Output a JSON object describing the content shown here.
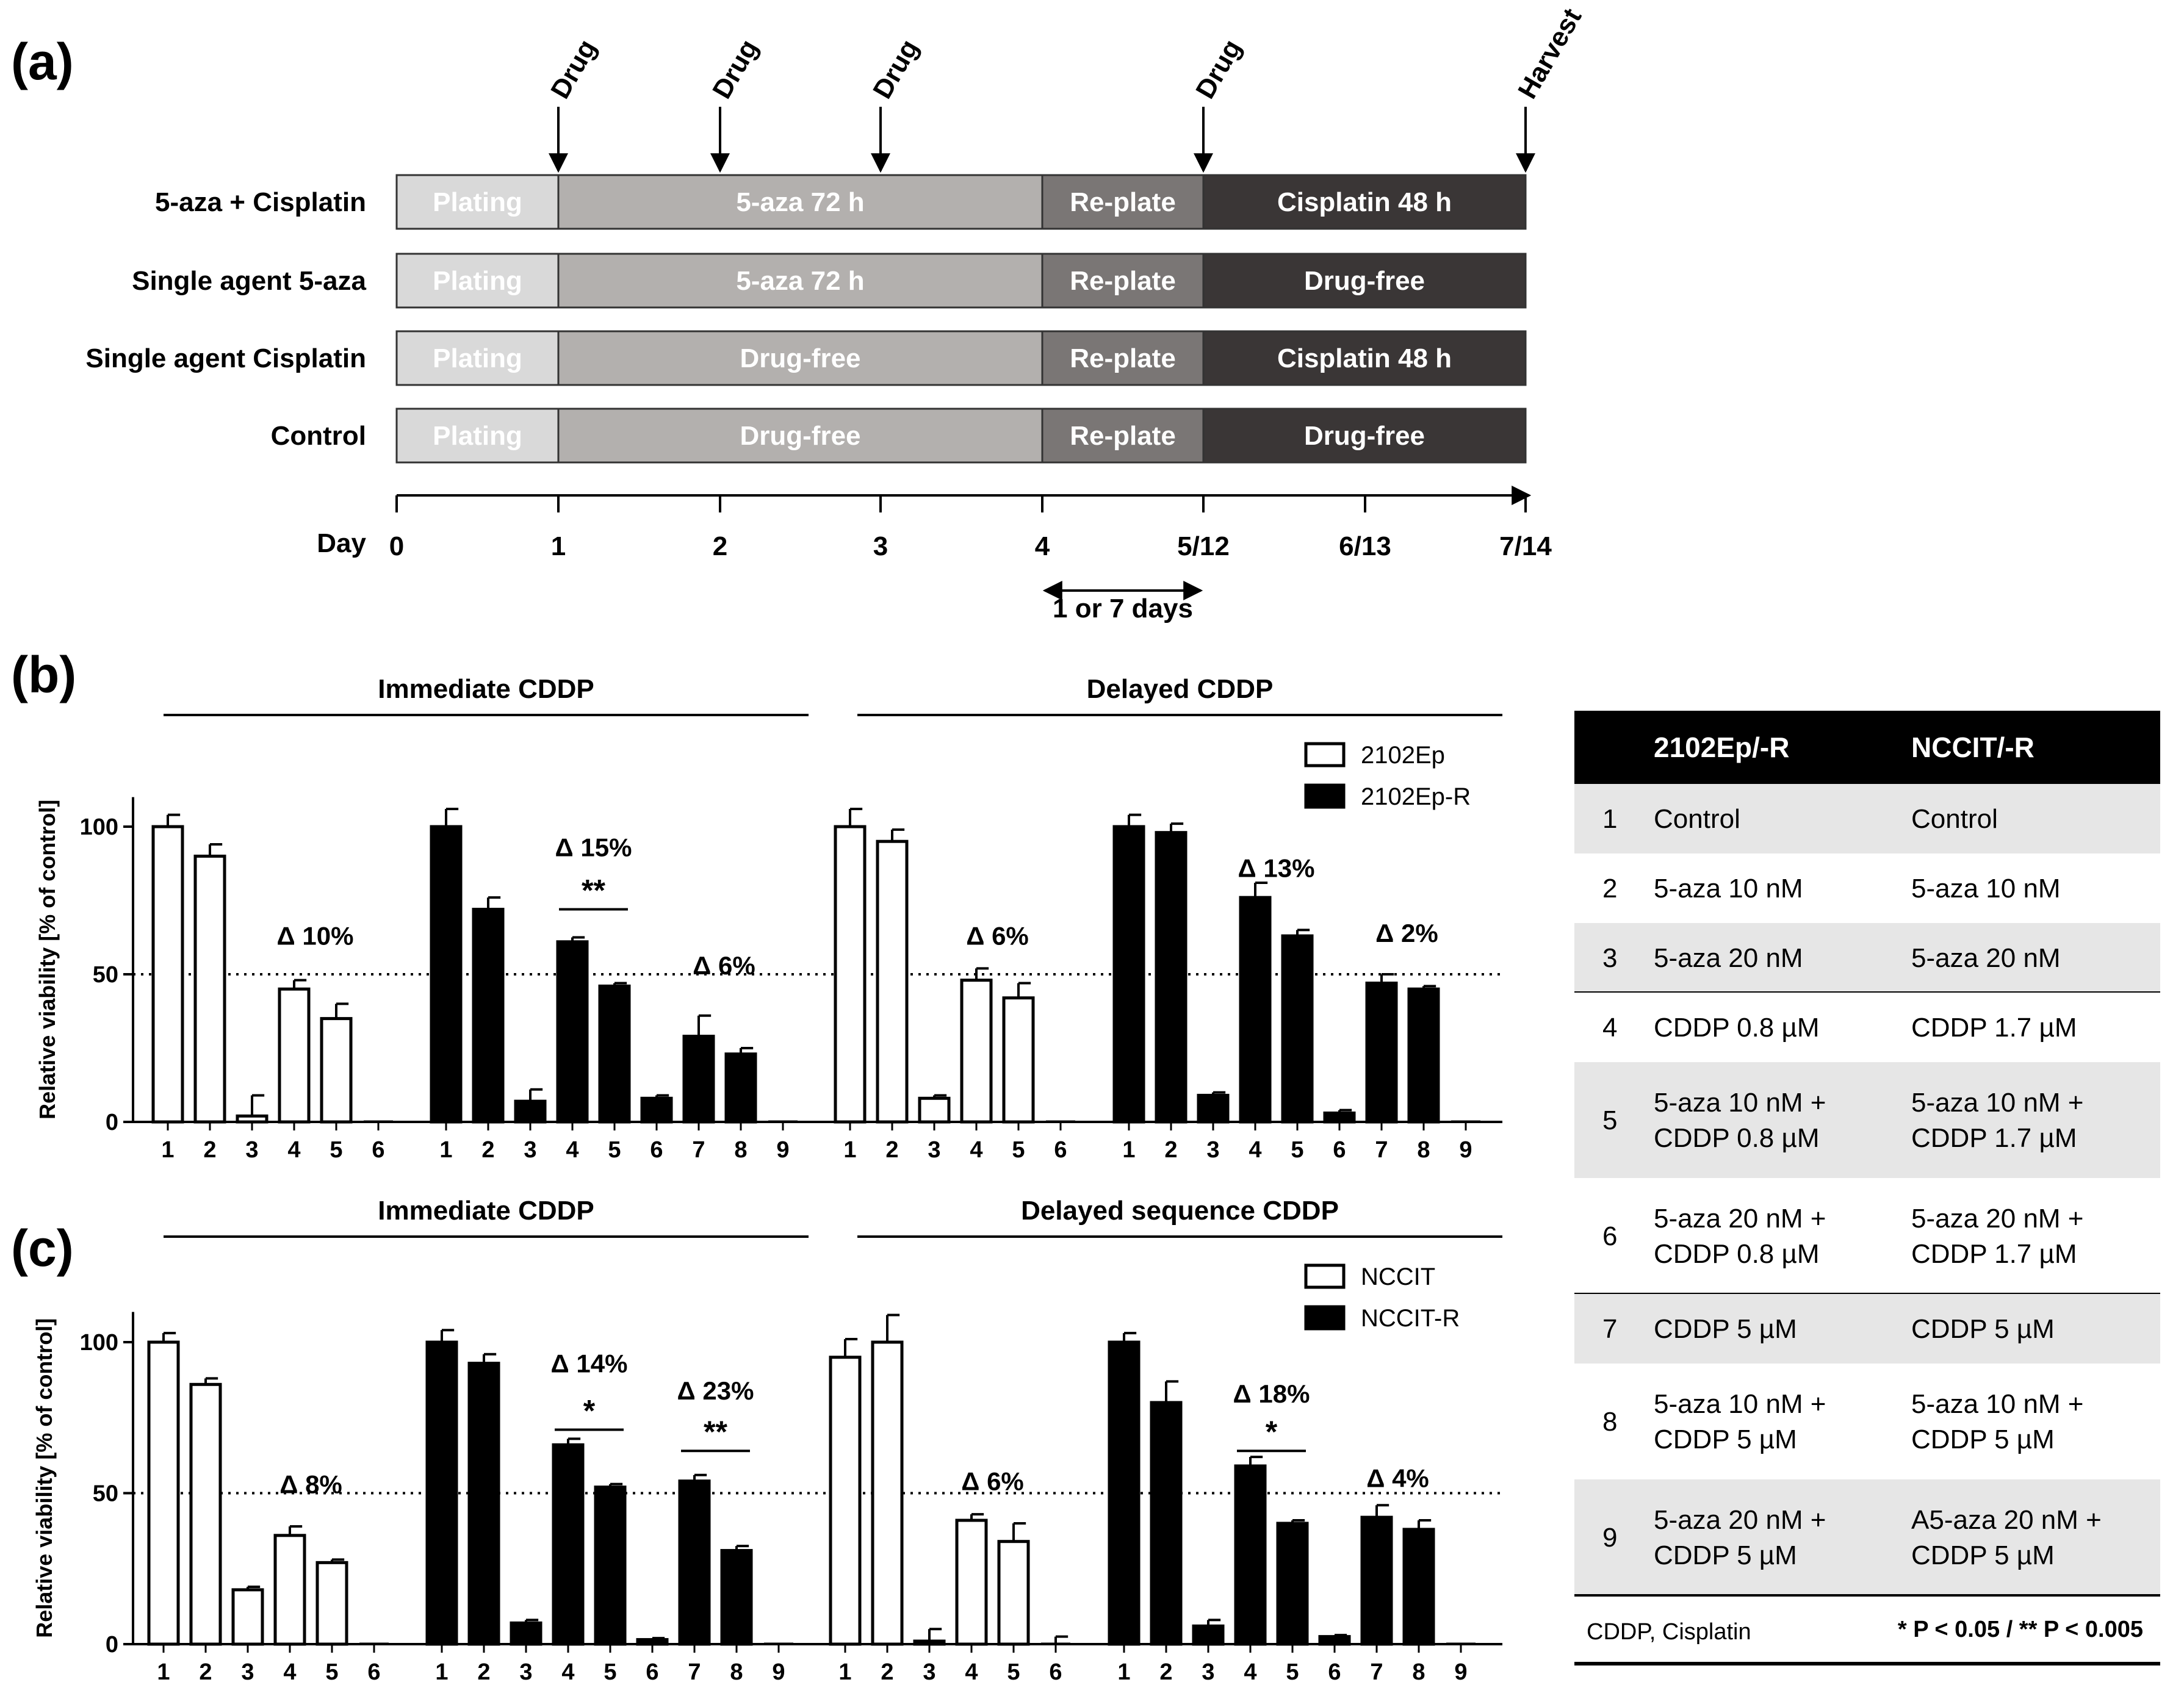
{
  "panel_a": {
    "label": "(a)",
    "events": [
      {
        "label": "Drug",
        "day": 1
      },
      {
        "label": "Drug",
        "day": 2
      },
      {
        "label": "Drug",
        "day": 3
      },
      {
        "label": "Drug",
        "day": 5
      },
      {
        "label": "Harvest",
        "day": 7
      }
    ],
    "rows": [
      {
        "name": "5-aza + Cisplatin",
        "segments": [
          "Plating",
          "5-aza 72 h",
          "Re-plate",
          "Cisplatin 48 h"
        ]
      },
      {
        "name": "Single agent 5-aza",
        "segments": [
          "Plating",
          "5-aza 72 h",
          "Re-plate",
          "Drug-free"
        ]
      },
      {
        "name": "Single agent Cisplatin",
        "segments": [
          "Plating",
          "Drug-free",
          "Re-plate",
          "Cisplatin 48 h"
        ]
      },
      {
        "name": "Control",
        "segments": [
          "Plating",
          "Drug-free",
          "Re-plate",
          "Drug-free"
        ]
      }
    ],
    "segment_day_bounds": [
      0,
      1,
      4,
      5,
      7
    ],
    "segment_colors": [
      "#d9d9d9",
      "#b3b0ae",
      "#7a7675",
      "#3a3636"
    ],
    "axis_label": "Day",
    "ticks": [
      "0",
      "1",
      "2",
      "3",
      "4",
      "5/12",
      "6/13",
      "7/14"
    ],
    "bracket_label": "1 or 7 days"
  },
  "panel_b": {
    "label": "(b)",
    "legend": [
      "2102Ep",
      "2102Ep-R"
    ],
    "ylabel": "Relative viability [% of control]"
  },
  "panel_c": {
    "label": "(c)",
    "legend": [
      "NCCIT",
      "NCCIT-R"
    ],
    "ylabel": "Relative viability [% of control]"
  },
  "chart_data": [
    {
      "type": "bar",
      "panel": "b",
      "headers": [
        "Immediate CDDP",
        "Delayed CDDP"
      ],
      "ylabel": "Relative viability [% of control]",
      "yticks": [
        0,
        50,
        100
      ],
      "ylim": [
        0,
        110
      ],
      "reference_line": 50,
      "groups": [
        {
          "section": 0,
          "series": "2102Ep",
          "categories": [
            "1",
            "2",
            "3",
            "4",
            "5",
            "6"
          ],
          "values": [
            100,
            90,
            2,
            45,
            35,
            0
          ],
          "errors": [
            4,
            4,
            7,
            3,
            5,
            0
          ]
        },
        {
          "section": 0,
          "series": "2102Ep-R",
          "categories": [
            "1",
            "2",
            "3",
            "4",
            "5",
            "6",
            "7",
            "8",
            "9"
          ],
          "values": [
            100,
            72,
            7,
            61,
            46,
            8,
            29,
            23,
            0
          ],
          "errors": [
            6,
            4,
            4,
            1.5,
            1,
            1,
            7,
            2,
            0
          ]
        },
        {
          "section": 1,
          "series": "2102Ep",
          "categories": [
            "1",
            "2",
            "3",
            "4",
            "5",
            "6"
          ],
          "values": [
            100,
            95,
            8,
            48,
            42,
            0
          ],
          "errors": [
            6,
            4,
            1,
            4,
            5,
            0
          ]
        },
        {
          "section": 1,
          "series": "2102Ep-R",
          "categories": [
            "1",
            "2",
            "3",
            "4",
            "5",
            "6",
            "7",
            "8",
            "9"
          ],
          "values": [
            100,
            98,
            9,
            76,
            63,
            3,
            47,
            45,
            0
          ],
          "errors": [
            4,
            3,
            1,
            5,
            2,
            1,
            3,
            1,
            0
          ]
        }
      ],
      "annotations": [
        {
          "group": 0,
          "text": "Δ 10%",
          "cat": 4.5,
          "y": 60
        },
        {
          "group": 1,
          "text": "Δ 15%",
          "cat": 4.5,
          "y": 90
        },
        {
          "group": 1,
          "text": "**",
          "cat": 4.5,
          "y": 73,
          "bar_from": 4,
          "bar_to": 5,
          "bar_y": 72
        },
        {
          "group": 1,
          "text": "Δ 6%",
          "cat": 7.6,
          "y": 50
        },
        {
          "group": 2,
          "text": "Δ 6%",
          "cat": 4.5,
          "y": 60
        },
        {
          "group": 3,
          "text": "Δ 13%",
          "cat": 4.5,
          "y": 83
        },
        {
          "group": 3,
          "text": "Δ 2%",
          "cat": 7.6,
          "y": 61
        }
      ]
    },
    {
      "type": "bar",
      "panel": "c",
      "headers": [
        "Immediate CDDP",
        "Delayed sequence CDDP"
      ],
      "ylabel": "Relative viability [% of control]",
      "yticks": [
        0,
        50,
        100
      ],
      "ylim": [
        0,
        110
      ],
      "reference_line": 50,
      "groups": [
        {
          "section": 0,
          "series": "NCCIT",
          "categories": [
            "1",
            "2",
            "3",
            "4",
            "5",
            "6"
          ],
          "values": [
            100,
            86,
            18,
            36,
            27,
            0
          ],
          "errors": [
            3,
            2,
            1,
            3,
            1,
            0
          ]
        },
        {
          "section": 0,
          "series": "NCCIT-R",
          "categories": [
            "1",
            "2",
            "3",
            "4",
            "5",
            "6",
            "7",
            "8",
            "9"
          ],
          "values": [
            100,
            93,
            7,
            66,
            52,
            1.5,
            54,
            31,
            0
          ],
          "errors": [
            4,
            3,
            1,
            2,
            1,
            0.5,
            2,
            1.5,
            0
          ]
        },
        {
          "section": 1,
          "series": "NCCIT",
          "categories": [
            "1",
            "2",
            "3",
            "4",
            "5",
            "6"
          ],
          "values": [
            95,
            100,
            1,
            41,
            34,
            0
          ],
          "errors": [
            6,
            9,
            4,
            2,
            6,
            2.5
          ]
        },
        {
          "section": 1,
          "series": "NCCIT-R",
          "categories": [
            "1",
            "2",
            "3",
            "4",
            "5",
            "6",
            "7",
            "8",
            "9"
          ],
          "values": [
            100,
            80,
            6,
            59,
            40,
            2.5,
            42,
            38,
            0
          ],
          "errors": [
            3,
            7,
            2,
            3,
            1,
            0.5,
            4,
            3,
            0
          ]
        }
      ],
      "annotations": [
        {
          "group": 0,
          "text": "Δ 8%",
          "cat": 4.5,
          "y": 50
        },
        {
          "group": 1,
          "text": "Δ 14%",
          "cat": 4.5,
          "y": 90
        },
        {
          "group": 1,
          "text": "*",
          "cat": 4.5,
          "y": 73,
          "bar_from": 4,
          "bar_to": 5,
          "bar_y": 71
        },
        {
          "group": 1,
          "text": "Δ 23%",
          "cat": 7.5,
          "y": 81
        },
        {
          "group": 1,
          "text": "**",
          "cat": 7.5,
          "y": 65,
          "bar_from": 7,
          "bar_to": 8,
          "bar_y": 64
        },
        {
          "group": 2,
          "text": "Δ 6%",
          "cat": 4.5,
          "y": 51
        },
        {
          "group": 3,
          "text": "Δ 18%",
          "cat": 4.5,
          "y": 80
        },
        {
          "group": 3,
          "text": "*",
          "cat": 4.5,
          "y": 66,
          "bar_from": 4,
          "bar_to": 5,
          "bar_y": 64
        },
        {
          "group": 3,
          "text": "Δ 4%",
          "cat": 7.5,
          "y": 52
        }
      ]
    },
    {
      "type": "table",
      "columns": [
        "",
        "2102Ep/-R",
        "NCCIT/-R"
      ],
      "rows": [
        [
          "1",
          "Control",
          "Control"
        ],
        [
          "2",
          "5-aza 10 nM",
          "5-aza 10 nM"
        ],
        [
          "3",
          "5-aza 20 nM",
          "5-aza 20 nM"
        ],
        [
          "4",
          "CDDP 0.8 µM",
          "CDDP 1.7 µM"
        ],
        [
          "5",
          "5-aza 10 nM +\nCDDP 0.8 µM",
          "5-aza 10 nM +\nCDDP 1.7 µM"
        ],
        [
          "6",
          "5-aza 20 nM +\nCDDP 0.8 µM",
          "5-aza 20 nM +\nCDDP 1.7 µM"
        ],
        [
          "7",
          "CDDP 5 µM",
          "CDDP 5 µM"
        ],
        [
          "8",
          "5-aza 10 nM +\nCDDP 5 µM",
          "5-aza 10 nM +\nCDDP 5 µM"
        ],
        [
          "9",
          "5-aza 20 nM +\nCDDP 5 µM",
          "A5-aza 20 nM +\nCDDP 5 µM"
        ]
      ],
      "footnote_left": "CDDP, Cisplatin",
      "footnote_right": "* P < 0.05 / ** P < 0.005"
    }
  ]
}
